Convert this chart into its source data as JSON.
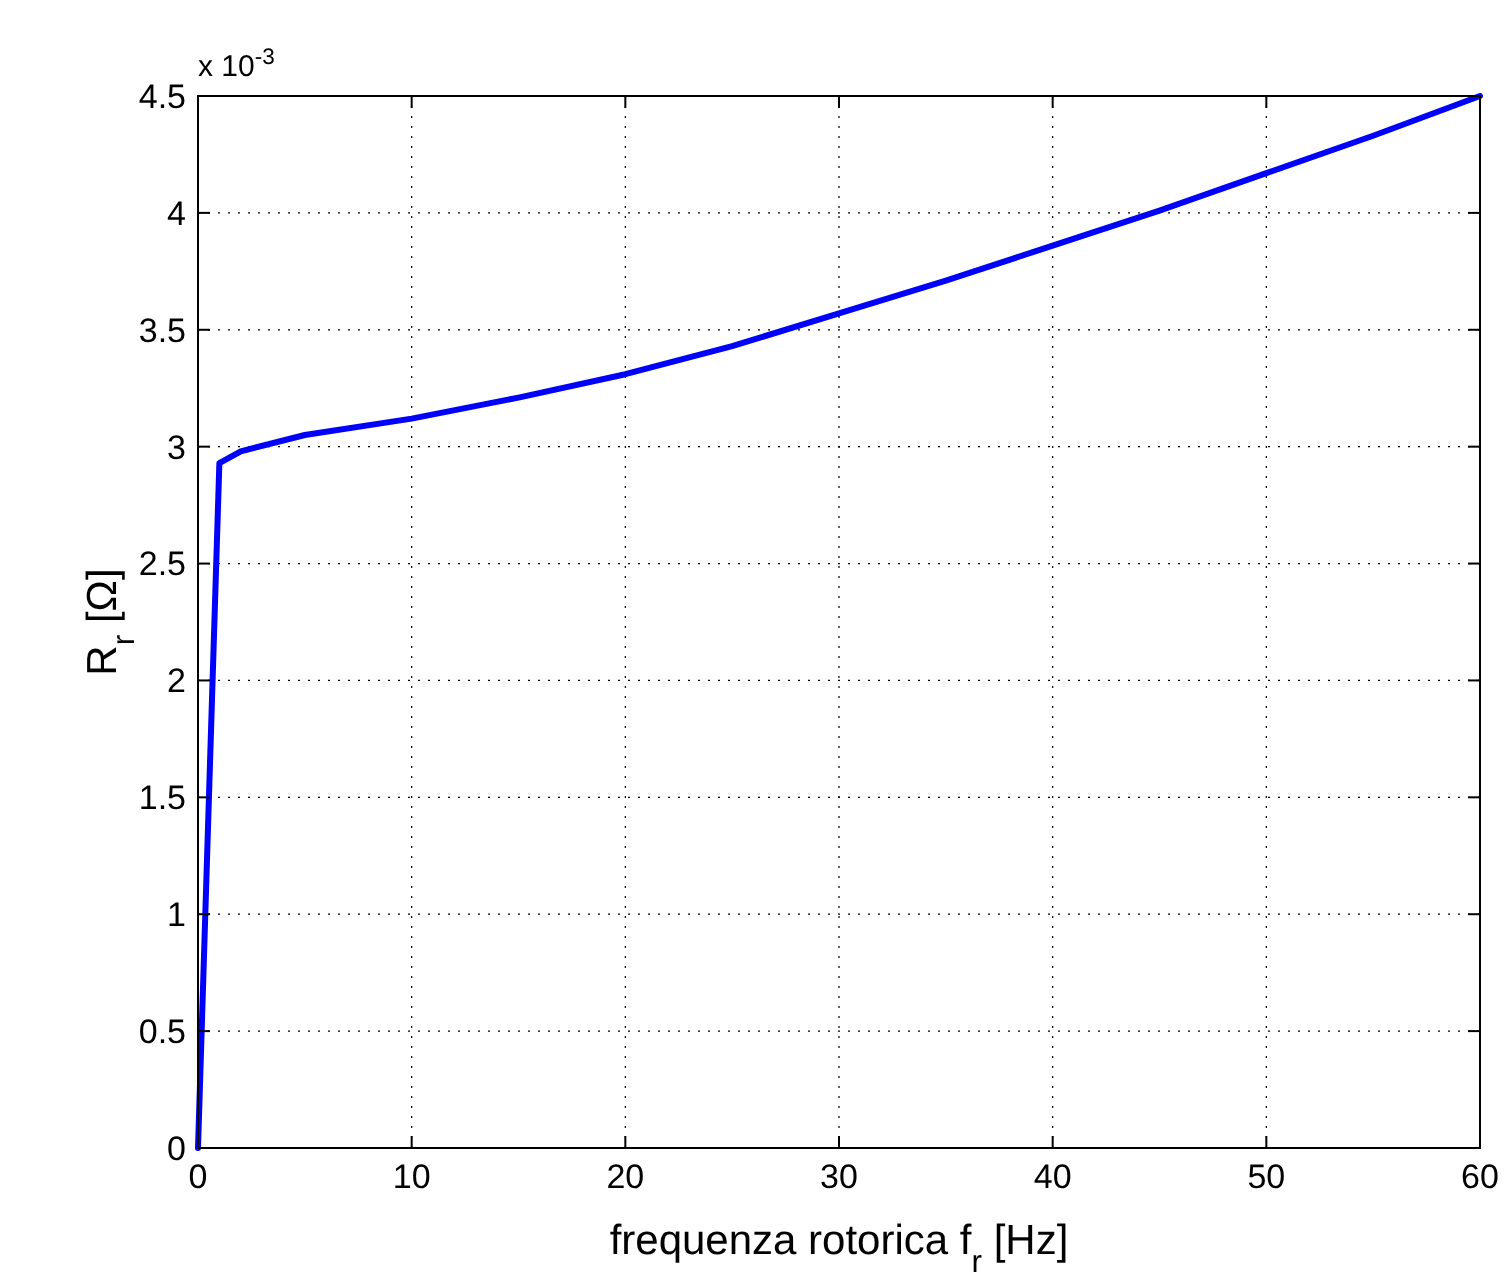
{
  "chart_data": {
    "type": "line",
    "xlabel": "frequenza rotorica f$_{r}$ [Hz]",
    "ylabel": "R$_{r}$ [Ω]",
    "annotations": [
      "x 10$^{-3}$"
    ],
    "x": [
      0,
      1,
      2,
      5,
      10,
      15,
      20,
      25,
      30,
      35,
      40,
      45,
      50,
      55,
      60
    ],
    "series": [
      {
        "color": "#0000ff",
        "values": [
          0,
          2.93,
          2.98,
          3.05,
          3.12,
          3.21,
          3.31,
          3.43,
          3.57,
          3.71,
          3.86,
          4.01,
          4.17,
          4.33,
          4.5
        ]
      }
    ],
    "xlim": [
      0,
      60
    ],
    "xticks": [
      0,
      10,
      20,
      30,
      40,
      50,
      60
    ],
    "ylim": [
      0,
      4.5
    ],
    "yticks": [
      0,
      0.5,
      1,
      1.5,
      2,
      2.5,
      3,
      3.5,
      4,
      4.5
    ],
    "grid": true,
    "line_style": "solid",
    "marker": "none"
  }
}
